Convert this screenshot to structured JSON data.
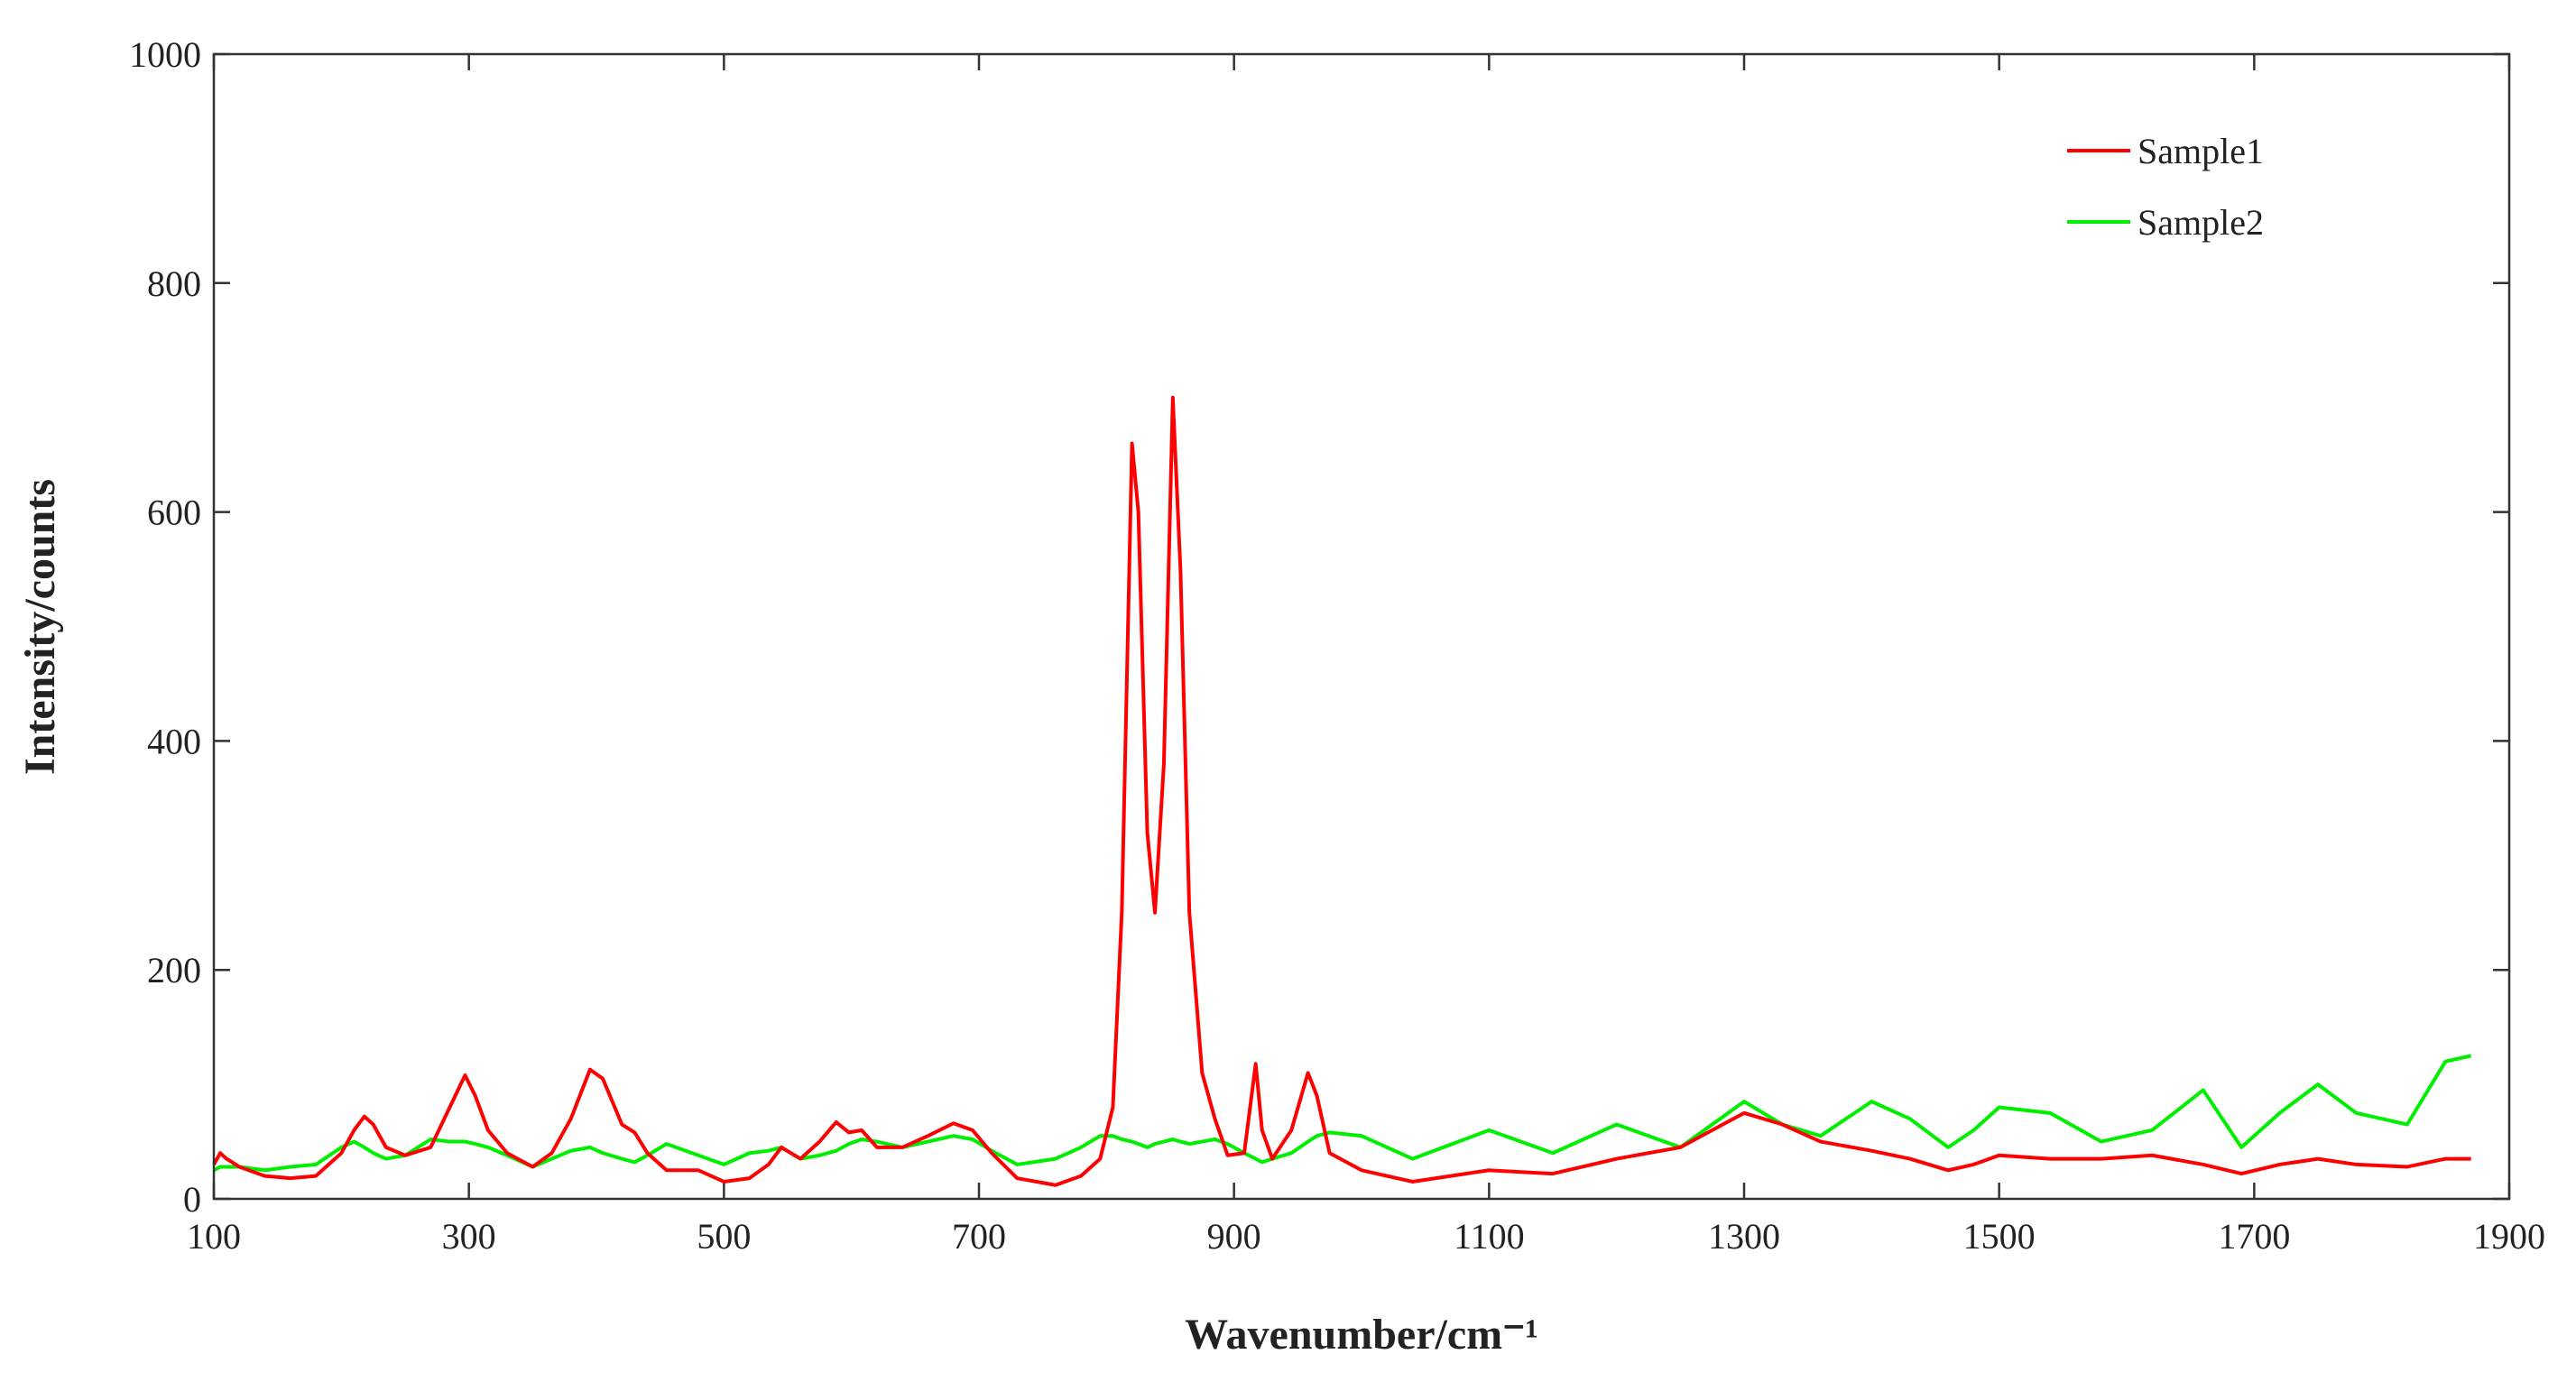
{
  "chart_data": {
    "type": "line",
    "x_label": "Wavenumber/cm⁻¹",
    "y_label": "Intensity/counts",
    "x": [
      100,
      105,
      110,
      120,
      140,
      160,
      180,
      200,
      210,
      218,
      225,
      235,
      250,
      270,
      285,
      297,
      305,
      315,
      330,
      350,
      365,
      380,
      395,
      405,
      420,
      430,
      440,
      455,
      480,
      500,
      520,
      535,
      545,
      560,
      575,
      588,
      598,
      608,
      620,
      640,
      660,
      680,
      695,
      710,
      730,
      760,
      780,
      795,
      805,
      812,
      820,
      825,
      832,
      838,
      845,
      852,
      858,
      865,
      875,
      885,
      895,
      908,
      917,
      922,
      930,
      945,
      958,
      965,
      975,
      1000,
      1040,
      1100,
      1150,
      1200,
      1250,
      1300,
      1330,
      1360,
      1400,
      1430,
      1460,
      1480,
      1500,
      1540,
      1580,
      1620,
      1660,
      1690,
      1720,
      1750,
      1780,
      1820,
      1850,
      1870
    ],
    "series": [
      {
        "name": "Sample1",
        "color": "#ff0000",
        "values": [
          30,
          40,
          35,
          28,
          20,
          18,
          20,
          40,
          60,
          72,
          65,
          45,
          38,
          45,
          80,
          108,
          90,
          60,
          40,
          28,
          40,
          70,
          113,
          105,
          65,
          58,
          40,
          25,
          25,
          15,
          18,
          30,
          45,
          35,
          50,
          67,
          58,
          60,
          45,
          45,
          55,
          66,
          60,
          40,
          18,
          12,
          20,
          35,
          80,
          250,
          660,
          600,
          320,
          250,
          380,
          700,
          550,
          250,
          110,
          70,
          38,
          40,
          118,
          60,
          35,
          60,
          110,
          90,
          40,
          25,
          15,
          25,
          22,
          35,
          45,
          75,
          65,
          50,
          42,
          35,
          25,
          30,
          38,
          35,
          35,
          38,
          30,
          22,
          30,
          35,
          30,
          28,
          35,
          35
        ]
      },
      {
        "name": "Sample2",
        "color": "#00ee00",
        "values": [
          25,
          28,
          28,
          28,
          25,
          28,
          30,
          45,
          50,
          45,
          40,
          35,
          38,
          52,
          50,
          50,
          48,
          45,
          38,
          28,
          35,
          42,
          45,
          40,
          35,
          32,
          38,
          48,
          38,
          30,
          40,
          42,
          45,
          35,
          38,
          42,
          48,
          52,
          50,
          45,
          50,
          55,
          52,
          42,
          30,
          35,
          45,
          55,
          55,
          52,
          50,
          48,
          45,
          48,
          50,
          52,
          50,
          48,
          50,
          52,
          48,
          40,
          35,
          32,
          35,
          40,
          50,
          55,
          58,
          55,
          35,
          60,
          40,
          65,
          45,
          85,
          65,
          55,
          85,
          70,
          45,
          60,
          80,
          75,
          50,
          60,
          95,
          45,
          75,
          100,
          75,
          65,
          120,
          125
        ]
      }
    ],
    "xlim": [
      100,
      1900
    ],
    "xticks": [
      100,
      300,
      500,
      700,
      900,
      1100,
      1300,
      1500,
      1700,
      1900
    ],
    "ylim": [
      0,
      1000
    ],
    "yticks": [
      0,
      200,
      400,
      600,
      800,
      1000
    ],
    "grid": false,
    "legend": "upper right"
  }
}
